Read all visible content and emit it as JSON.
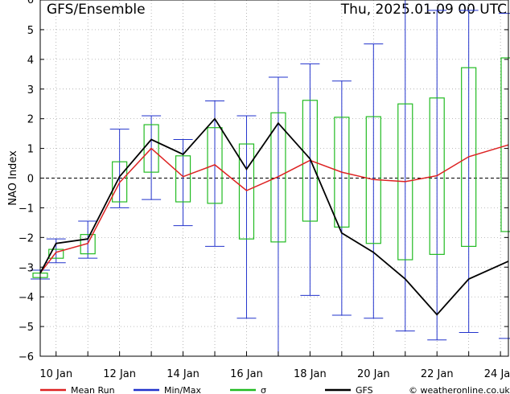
{
  "header": {
    "title": "GFS/Ensemble",
    "datetime": "Thu, 2025.01.09  00 UTC"
  },
  "credit": "© weatheronline.co.uk",
  "chart_data": {
    "type": "box-line",
    "ylabel": "NAO Index",
    "ylim": [
      -6,
      6
    ],
    "yticks": [
      -6,
      -5,
      -4,
      -3,
      -2,
      -1,
      0,
      1,
      2,
      3,
      4,
      5,
      6
    ],
    "xlim": [
      9.5,
      24.25
    ],
    "xtick_labels": [
      {
        "day": 10,
        "label": "10 Jan"
      },
      {
        "day": 12,
        "label": "12 Jan"
      },
      {
        "day": 14,
        "label": "14 Jan"
      },
      {
        "day": 16,
        "label": "16 Jan"
      },
      {
        "day": 18,
        "label": "18 Jan"
      },
      {
        "day": 20,
        "label": "20 Jan"
      },
      {
        "day": 22,
        "label": "22 Jan"
      },
      {
        "day": 24,
        "label": "24 Jan"
      }
    ],
    "x": [
      9.5,
      10,
      10.5,
      11,
      11.5,
      12,
      12.5,
      13,
      13.5,
      14,
      14.5,
      15,
      15.5,
      16,
      16.5,
      17,
      17.5,
      18,
      18.5,
      19,
      19.5,
      20,
      20.5,
      21,
      21.5,
      22,
      22.5,
      23,
      23.5,
      24,
      24.25
    ],
    "series": [
      {
        "name": "Mean Run",
        "color": "#dd2222",
        "points": [
          [
            9.5,
            -3.2
          ],
          [
            10,
            -2.5
          ],
          [
            11,
            -2.2
          ],
          [
            12,
            -0.15
          ],
          [
            13,
            1.0
          ],
          [
            14,
            0.05
          ],
          [
            15,
            0.45
          ],
          [
            16,
            -0.42
          ],
          [
            17,
            0.05
          ],
          [
            18,
            0.6
          ],
          [
            19,
            0.2
          ],
          [
            20,
            -0.05
          ],
          [
            21,
            -0.12
          ],
          [
            22,
            0.08
          ],
          [
            23,
            0.72
          ],
          [
            24.25,
            1.12
          ]
        ]
      },
      {
        "name": "GFS",
        "color": "#000000",
        "points": [
          [
            9.5,
            -3.2
          ],
          [
            10,
            -2.2
          ],
          [
            11,
            -2.05
          ],
          [
            12,
            0.05
          ],
          [
            13,
            1.3
          ],
          [
            14,
            0.8
          ],
          [
            15,
            2.0
          ],
          [
            16,
            0.3
          ],
          [
            17,
            1.85
          ],
          [
            18,
            0.65
          ],
          [
            19,
            -1.85
          ],
          [
            20,
            -2.5
          ],
          [
            21,
            -3.4
          ],
          [
            22,
            -4.6
          ],
          [
            23,
            -3.4
          ],
          [
            24.25,
            -2.8
          ]
        ]
      }
    ],
    "minmax": {
      "name": "Min/Max",
      "color": "#2233cc",
      "ranges": [
        [
          9.5,
          -3.4,
          -3.1
        ],
        [
          10,
          -2.85,
          -2.05
        ],
        [
          11,
          -2.7,
          -1.45
        ],
        [
          12,
          -1.0,
          1.65
        ],
        [
          13,
          -0.72,
          2.1
        ],
        [
          14,
          -1.6,
          1.3
        ],
        [
          15,
          -2.3,
          2.6
        ],
        [
          16,
          -4.72,
          2.1
        ],
        [
          17,
          -6.0,
          3.4
        ],
        [
          18,
          -3.95,
          3.85
        ],
        [
          19,
          -4.62,
          3.27
        ],
        [
          20,
          -4.72,
          4.52
        ],
        [
          21,
          -5.15,
          6.0
        ],
        [
          22,
          -5.45,
          5.65
        ],
        [
          23,
          -5.2,
          5.65
        ],
        [
          24.25,
          -5.4,
          5.55
        ]
      ]
    },
    "sigma": {
      "name": "σ",
      "color": "#22bb22",
      "boxes": [
        [
          9.5,
          -3.35,
          -3.2
        ],
        [
          10,
          -2.7,
          -2.4
        ],
        [
          11,
          -2.55,
          -1.9
        ],
        [
          12,
          -0.8,
          0.55
        ],
        [
          13,
          0.2,
          1.8
        ],
        [
          14,
          -0.8,
          0.75
        ],
        [
          15,
          -0.85,
          1.7
        ],
        [
          16,
          -2.05,
          1.15
        ],
        [
          17,
          -2.15,
          2.2
        ],
        [
          18,
          -1.45,
          2.62
        ],
        [
          19,
          -1.65,
          2.05
        ],
        [
          20,
          -2.2,
          2.07
        ],
        [
          21,
          -2.75,
          2.5
        ],
        [
          22,
          -2.57,
          2.7
        ],
        [
          23,
          -2.3,
          3.72
        ],
        [
          24.25,
          -1.8,
          4.05
        ]
      ]
    },
    "zero_line": "dashed",
    "grid": true
  },
  "legend": [
    {
      "label": "Mean Run",
      "color": "#dd2222",
      "kind": "line"
    },
    {
      "label": "Min/Max",
      "color": "#2233cc",
      "kind": "line"
    },
    {
      "label": "σ",
      "color": "#22bb22",
      "kind": "line"
    },
    {
      "label": "GFS",
      "color": "#000000",
      "kind": "line"
    }
  ]
}
